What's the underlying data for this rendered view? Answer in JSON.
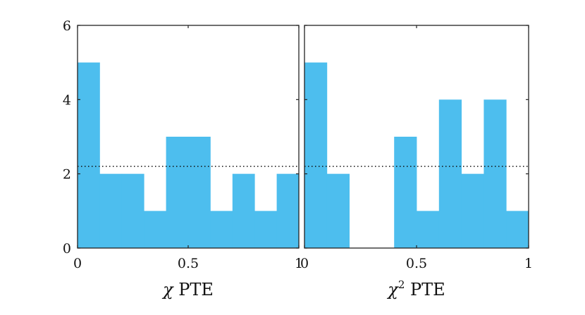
{
  "chart_data": [
    {
      "type": "bar",
      "panel": "left",
      "xlabel_symbol": "χ",
      "xlabel_superscript": "",
      "xlabel_text": " PTE",
      "bin_edges": [
        0,
        0.1,
        0.2,
        0.3,
        0.4,
        0.5,
        0.6,
        0.7,
        0.8,
        0.9,
        1.0
      ],
      "values": [
        5,
        2,
        2,
        1,
        3,
        3,
        1,
        2,
        1,
        2
      ],
      "xlim": [
        0,
        1
      ],
      "ylim": [
        0,
        6
      ],
      "xticks": [
        0,
        0.5,
        1
      ],
      "xtick_labels": [
        "0",
        "0.5",
        "1"
      ],
      "yticks": [
        0,
        2,
        4,
        6
      ],
      "ytick_labels": [
        "0",
        "2",
        "4",
        "6"
      ],
      "reference_line": 2.2,
      "bar_color": "#4dbeee"
    },
    {
      "type": "bar",
      "panel": "right",
      "xlabel_symbol": "χ",
      "xlabel_superscript": "2",
      "xlabel_text": " PTE",
      "bin_edges": [
        0,
        0.1,
        0.2,
        0.3,
        0.4,
        0.5,
        0.6,
        0.7,
        0.8,
        0.9,
        1.0
      ],
      "values": [
        5,
        2,
        0,
        0,
        3,
        1,
        4,
        2,
        4,
        1
      ],
      "xlim": [
        0,
        1
      ],
      "ylim": [
        0,
        6
      ],
      "xticks": [
        0,
        0.5,
        1
      ],
      "xtick_labels": [
        "0",
        "0.5",
        "1"
      ],
      "yticks": [
        0,
        2,
        4,
        6
      ],
      "ytick_labels": [],
      "reference_line": 2.2,
      "bar_color": "#4dbeee"
    }
  ]
}
